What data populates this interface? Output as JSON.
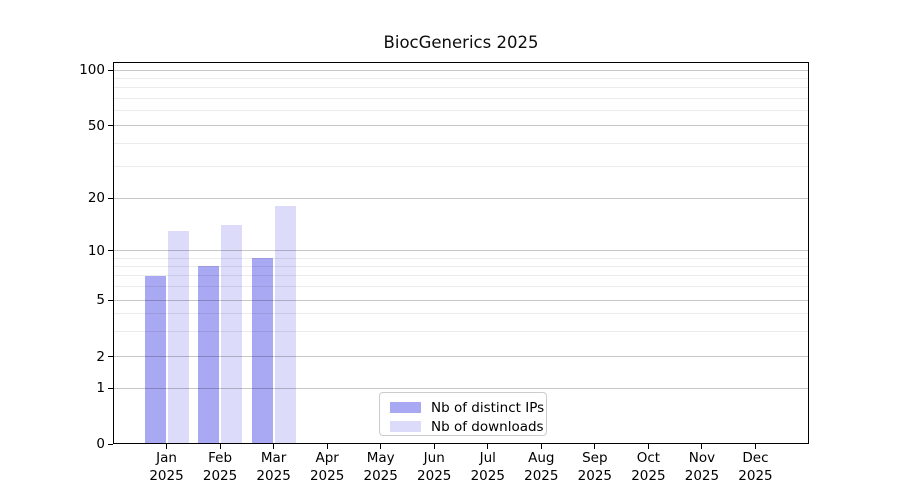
{
  "figure": {
    "title": "BiocGenerics 2025"
  },
  "chart_data": {
    "type": "bar",
    "title": "BiocGenerics 2025",
    "categories": [
      "Jan",
      "Feb",
      "Mar",
      "Apr",
      "May",
      "Jun",
      "Jul",
      "Aug",
      "Sep",
      "Oct",
      "Nov",
      "Dec"
    ],
    "x_tick_year_line": "2025",
    "series": [
      {
        "name": "Nb of distinct IPs",
        "color": "#a9a8f2",
        "values": [
          7,
          8,
          9,
          null,
          null,
          null,
          null,
          null,
          null,
          null,
          null,
          null
        ]
      },
      {
        "name": "Nb of downloads",
        "color": "#dcdbf9",
        "values": [
          13,
          14,
          18,
          null,
          null,
          null,
          null,
          null,
          null,
          null,
          null,
          null
        ]
      }
    ],
    "y_axis": {
      "tick_labels": [
        "0",
        "1",
        "2",
        "5",
        "10",
        "20",
        "50",
        "100"
      ],
      "minor_gridlines": [
        3,
        4,
        6,
        7,
        8,
        9,
        30,
        40,
        60,
        70,
        80,
        90
      ],
      "scale": "log above 1, linear segment 0-1",
      "range": [
        0,
        100
      ]
    },
    "legend": {
      "position": "lower center",
      "items": [
        "Nb of distinct IPs",
        "Nb of downloads"
      ]
    },
    "grid": "horizontal major+minor",
    "xlabel": "",
    "ylabel": ""
  }
}
